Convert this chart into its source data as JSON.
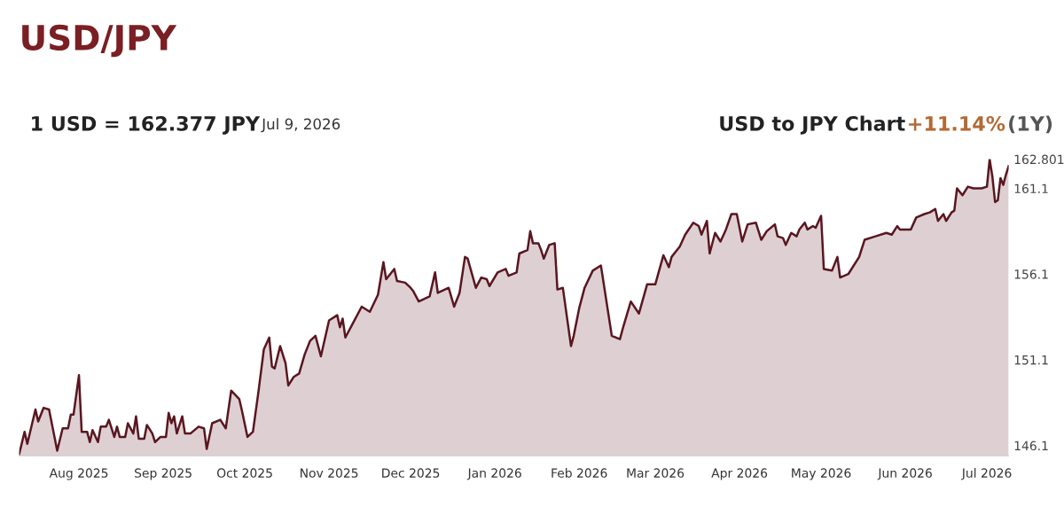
{
  "chart_data": {
    "type": "area",
    "title": "USD/JPY",
    "annotations": [
      "1 USD = 162.377 JPY",
      "Jul 9, 2026",
      "USD to JPY Chart",
      "+11.14%",
      "(1Y)"
    ],
    "x": [
      "2025-07-10",
      "2025-07-12",
      "2025-07-13",
      "2025-07-16",
      "2025-07-17",
      "2025-07-19",
      "2025-07-21",
      "2025-07-24",
      "2025-07-26",
      "2025-07-28",
      "2025-07-29",
      "2025-07-30",
      "2025-08-01",
      "2025-08-02",
      "2025-08-04",
      "2025-08-05",
      "2025-08-06",
      "2025-08-08",
      "2025-08-09",
      "2025-08-11",
      "2025-08-12",
      "2025-08-14",
      "2025-08-15",
      "2025-08-16",
      "2025-08-18",
      "2025-08-19",
      "2025-08-21",
      "2025-08-22",
      "2025-08-23",
      "2025-08-25",
      "2025-08-26",
      "2025-08-28",
      "2025-08-29",
      "2025-08-31",
      "2025-09-02",
      "2025-09-03",
      "2025-09-04",
      "2025-09-05",
      "2025-09-06",
      "2025-09-08",
      "2025-09-09",
      "2025-09-11",
      "2025-09-14",
      "2025-09-16",
      "2025-09-17",
      "2025-09-19",
      "2025-09-22",
      "2025-09-24",
      "2025-09-26",
      "2025-09-29",
      "2025-09-30",
      "2025-10-02",
      "2025-10-04",
      "2025-10-06",
      "2025-10-08",
      "2025-10-10",
      "2025-10-11",
      "2025-10-12",
      "2025-10-14",
      "2025-10-16",
      "2025-10-17",
      "2025-10-19",
      "2025-10-21",
      "2025-10-23",
      "2025-10-25",
      "2025-10-27",
      "2025-10-29",
      "2025-11-01",
      "2025-11-04",
      "2025-11-05",
      "2025-11-06",
      "2025-11-07",
      "2025-11-10",
      "2025-11-13",
      "2025-11-16",
      "2025-11-19",
      "2025-11-21",
      "2025-11-22",
      "2025-11-25",
      "2025-11-26",
      "2025-11-29",
      "2025-12-01",
      "2025-12-02",
      "2025-12-04",
      "2025-12-08",
      "2025-12-10",
      "2025-12-11",
      "2025-12-15",
      "2025-12-17",
      "2025-12-19",
      "2025-12-21",
      "2025-12-22",
      "2025-12-25",
      "2025-12-27",
      "2025-12-29",
      "2025-12-30",
      "2026-01-02",
      "2026-01-05",
      "2026-01-06",
      "2026-01-09",
      "2026-01-10",
      "2026-01-13",
      "2026-01-14",
      "2026-01-15",
      "2026-01-17",
      "2026-01-18",
      "2026-01-19",
      "2026-01-21",
      "2026-01-23",
      "2026-01-24",
      "2026-01-26",
      "2026-01-29",
      "2026-01-30",
      "2026-02-01",
      "2026-02-03",
      "2026-02-06",
      "2026-02-09",
      "2026-02-13",
      "2026-02-16",
      "2026-02-17",
      "2026-02-20",
      "2026-02-23",
      "2026-02-26",
      "2026-03-01",
      "2026-03-04",
      "2026-03-06",
      "2026-03-07",
      "2026-03-10",
      "2026-03-12",
      "2026-03-15",
      "2026-03-17",
      "2026-03-18",
      "2026-03-20",
      "2026-03-21",
      "2026-03-23",
      "2026-03-25",
      "2026-03-27",
      "2026-03-29",
      "2026-03-31",
      "2026-04-02",
      "2026-04-04",
      "2026-04-07",
      "2026-04-09",
      "2026-04-11",
      "2026-04-14",
      "2026-04-15",
      "2026-04-17",
      "2026-04-18",
      "2026-04-20",
      "2026-04-22",
      "2026-04-23",
      "2026-04-25",
      "2026-04-26",
      "2026-04-28",
      "2026-04-29",
      "2026-05-01",
      "2026-05-02",
      "2026-05-05",
      "2026-05-07",
      "2026-05-08",
      "2026-05-11",
      "2026-05-15",
      "2026-05-17",
      "2026-05-21",
      "2026-05-25",
      "2026-05-27",
      "2026-05-29",
      "2026-05-30",
      "2026-06-03",
      "2026-06-05",
      "2026-06-08",
      "2026-06-10",
      "2026-06-12",
      "2026-06-13",
      "2026-06-15",
      "2026-06-16",
      "2026-06-18",
      "2026-06-19",
      "2026-06-20",
      "2026-06-22",
      "2026-06-24",
      "2026-06-26",
      "2026-06-29",
      "2026-07-01",
      "2026-07-02",
      "2026-07-03",
      "2026-07-04",
      "2026-07-05",
      "2026-07-06",
      "2026-07-07",
      "2026-07-08",
      "2026-07-09"
    ],
    "series": [
      {
        "color": "#5a1620",
        "values": [
          145.6,
          146.9,
          146.2,
          148.2,
          147.5,
          148.3,
          148.2,
          145.8,
          147.1,
          147.1,
          147.9,
          147.9,
          150.2,
          146.9,
          146.9,
          146.3,
          147.0,
          146.3,
          147.2,
          147.2,
          147.6,
          146.6,
          147.2,
          146.6,
          146.6,
          147.4,
          146.8,
          147.8,
          146.5,
          146.5,
          147.3,
          146.8,
          146.3,
          146.6,
          146.6,
          148.0,
          147.4,
          147.8,
          146.8,
          147.8,
          146.8,
          146.8,
          147.2,
          147.1,
          145.9,
          147.4,
          147.6,
          147.1,
          149.3,
          148.8,
          148.1,
          146.6,
          146.9,
          149.2,
          151.7,
          152.4,
          150.7,
          150.6,
          151.9,
          150.9,
          149.6,
          150.1,
          150.3,
          151.4,
          152.2,
          152.5,
          151.3,
          153.4,
          153.7,
          153.0,
          153.5,
          152.4,
          153.3,
          154.2,
          153.9,
          154.9,
          156.8,
          155.8,
          156.4,
          155.7,
          155.6,
          155.3,
          155.1,
          154.5,
          154.8,
          156.2,
          155.0,
          155.3,
          154.2,
          155.0,
          157.1,
          157.0,
          155.3,
          155.9,
          155.8,
          155.4,
          156.2,
          156.4,
          156.0,
          156.2,
          157.3,
          157.5,
          158.6,
          157.9,
          157.9,
          157.5,
          157.0,
          157.8,
          157.9,
          155.2,
          155.3,
          151.9,
          152.5,
          154.1,
          155.3,
          156.3,
          156.6,
          152.5,
          152.3,
          152.9,
          154.5,
          153.8,
          155.5,
          155.5,
          157.2,
          156.5,
          157.1,
          157.7,
          158.4,
          159.1,
          158.9,
          158.4,
          159.2,
          157.3,
          158.5,
          158.0,
          158.7,
          159.6,
          159.6,
          158.0,
          159.0,
          159.1,
          158.1,
          158.6,
          159.0,
          158.3,
          158.2,
          157.8,
          158.5,
          158.3,
          158.7,
          159.1,
          158.7,
          158.9,
          158.8,
          159.5,
          156.4,
          156.3,
          157.1,
          155.9,
          156.1,
          157.1,
          158.1,
          158.3,
          158.5,
          158.4,
          158.9,
          158.7,
          158.7,
          159.4,
          159.6,
          159.7,
          159.9,
          159.2,
          159.6,
          159.2,
          159.7,
          159.8,
          161.1,
          160.7,
          161.2,
          161.1,
          161.1,
          161.2,
          162.8,
          161.8,
          160.3,
          160.4,
          161.7,
          161.3,
          161.9,
          162.4
        ]
      }
    ],
    "xlim": [
      "2025-07-10",
      "2026-07-09"
    ],
    "xticks": [
      {
        "value": "2025-08-01",
        "label": "Aug 2025"
      },
      {
        "value": "2025-09-01",
        "label": "Sep 2025"
      },
      {
        "value": "2025-10-01",
        "label": "Oct 2025"
      },
      {
        "value": "2025-11-01",
        "label": "Nov 2025"
      },
      {
        "value": "2025-12-01",
        "label": "Dec 2025"
      },
      {
        "value": "2026-01-01",
        "label": "Jan 2026"
      },
      {
        "value": "2026-02-01",
        "label": "Feb 2026"
      },
      {
        "value": "2026-03-01",
        "label": "Mar 2026"
      },
      {
        "value": "2026-04-01",
        "label": "Apr 2026"
      },
      {
        "value": "2026-05-01",
        "label": "May 2026"
      },
      {
        "value": "2026-06-01",
        "label": "Jun 2026"
      },
      {
        "value": "2026-07-01",
        "label": "Jul 2026"
      }
    ],
    "ylim": [
      145.5,
      162.801
    ],
    "yticks": [
      146.1,
      151.1,
      156.1,
      161.1,
      162.801
    ],
    "grid": false,
    "legend": false
  }
}
